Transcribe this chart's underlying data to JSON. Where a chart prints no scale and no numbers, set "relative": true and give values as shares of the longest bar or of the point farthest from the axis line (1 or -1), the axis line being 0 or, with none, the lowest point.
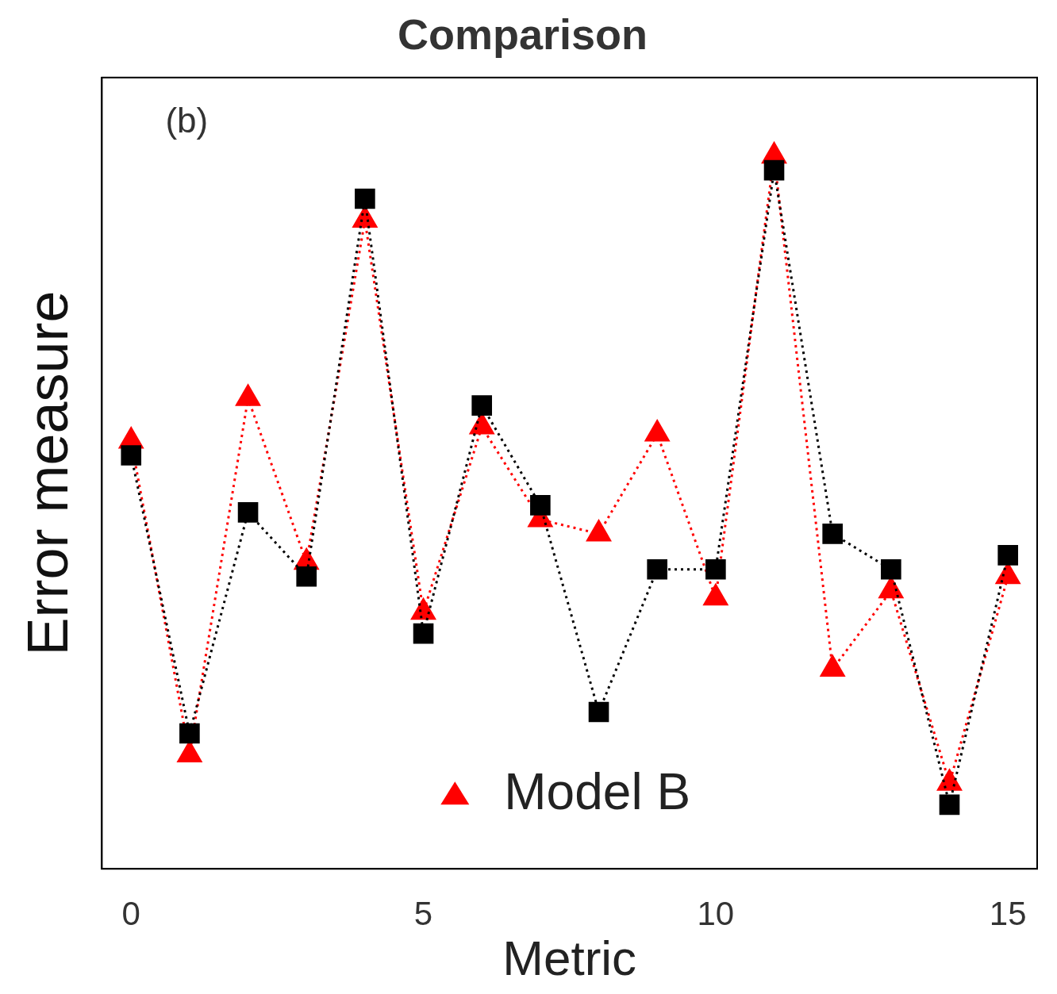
{
  "chart_data": {
    "type": "line",
    "title": "Comparison",
    "xlabel": "Metric",
    "ylabel": "Error measure",
    "annotations": [
      "(b)"
    ],
    "x": [
      0,
      1,
      2,
      3,
      4,
      5,
      6,
      7,
      8,
      9,
      10,
      11,
      12,
      13,
      14,
      15
    ],
    "xlim": [
      -0.5,
      15.5
    ],
    "xticks": [
      0,
      5,
      10,
      15
    ],
    "relative": true,
    "grid": false,
    "legend": "bottom",
    "line_style": "dotted",
    "series": [
      {
        "color": "#000000",
        "marker": "square",
        "values": [
          0.58,
          0.19,
          0.5,
          0.41,
          0.94,
          0.33,
          0.65,
          0.51,
          0.22,
          0.42,
          0.42,
          0.98,
          0.47,
          0.42,
          0.09,
          0.44
        ]
      },
      {
        "name": "Model B",
        "color": "#ff0000",
        "marker": "triangle",
        "values": [
          0.6,
          0.16,
          0.66,
          0.43,
          0.91,
          0.36,
          0.62,
          0.49,
          0.47,
          0.61,
          0.38,
          1.0,
          0.28,
          0.39,
          0.12,
          0.41
        ]
      }
    ]
  }
}
